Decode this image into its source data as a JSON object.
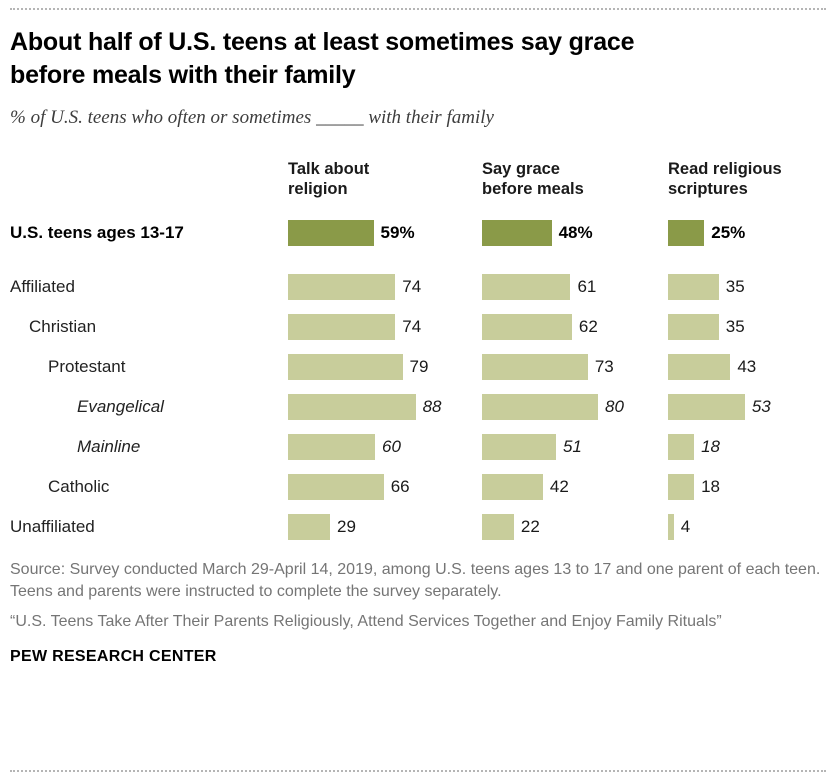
{
  "title": "About half of U.S. teens at least sometimes say grace before meals with their family",
  "subtitle": "% of U.S. teens who often or sometimes _____ with their family",
  "chart_data": {
    "type": "bar",
    "orientation": "horizontal",
    "columns": [
      "Talk about religion",
      "Say grace before meals",
      "Read religious scriptures"
    ],
    "xlim": [
      0,
      100
    ],
    "rows": [
      {
        "label": "U.S. teens ages 13-17",
        "values": [
          59,
          48,
          25
        ],
        "display": [
          "59%",
          "48%",
          "25%"
        ],
        "bold": true,
        "italic": false,
        "indent": 0
      },
      {
        "label": "Affiliated",
        "values": [
          74,
          61,
          35
        ],
        "bold": false,
        "italic": false,
        "indent": 0
      },
      {
        "label": "Christian",
        "values": [
          74,
          62,
          35
        ],
        "bold": false,
        "italic": false,
        "indent": 1
      },
      {
        "label": "Protestant",
        "values": [
          79,
          73,
          43
        ],
        "bold": false,
        "italic": false,
        "indent": 2
      },
      {
        "label": "Evangelical",
        "values": [
          88,
          80,
          53
        ],
        "bold": false,
        "italic": true,
        "indent": 3
      },
      {
        "label": "Mainline",
        "values": [
          60,
          51,
          18
        ],
        "bold": false,
        "italic": true,
        "indent": 3
      },
      {
        "label": "Catholic",
        "values": [
          66,
          42,
          18
        ],
        "bold": false,
        "italic": false,
        "indent": 2
      },
      {
        "label": "Unaffiliated",
        "values": [
          29,
          22,
          4
        ],
        "bold": false,
        "italic": false,
        "indent": 0
      }
    ]
  },
  "colors": {
    "dark_bar": "#8a9a48",
    "light_bar": "#c8cd9b"
  },
  "source": "Source: Survey conducted March 29-April 14, 2019, among U.S. teens ages 13 to 17 and one parent of each teen. Teens and parents were instructed to complete the survey separately.",
  "report_title": "“U.S. Teens Take After Their Parents Religiously, Attend Services Together and Enjoy Family Rituals”",
  "footer": "PEW RESEARCH CENTER"
}
